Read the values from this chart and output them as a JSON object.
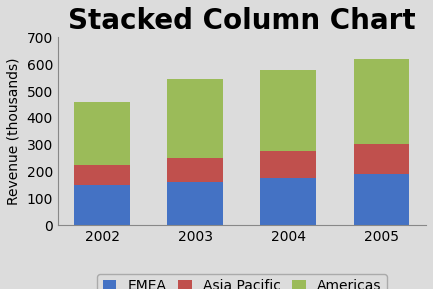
{
  "title": "Stacked Column Chart",
  "ylabel": "Revenue (thousands)",
  "categories": [
    "2002",
    "2003",
    "2004",
    "2005"
  ],
  "series": {
    "EMEA": [
      150,
      163,
      178,
      193
    ],
    "Asia Pacific": [
      75,
      88,
      100,
      110
    ],
    "Americas": [
      235,
      293,
      302,
      317
    ]
  },
  "colors": {
    "EMEA": "#4472C4",
    "Asia Pacific": "#C0504D",
    "Americas": "#9BBB59"
  },
  "ylim": [
    0,
    700
  ],
  "yticks": [
    0,
    100,
    200,
    300,
    400,
    500,
    600,
    700
  ],
  "bar_width": 0.6,
  "background_color": "#DCDCDC",
  "plot_bg_color": "#DCDCDC",
  "title_fontsize": 20,
  "axis_fontsize": 10,
  "legend_fontsize": 10
}
